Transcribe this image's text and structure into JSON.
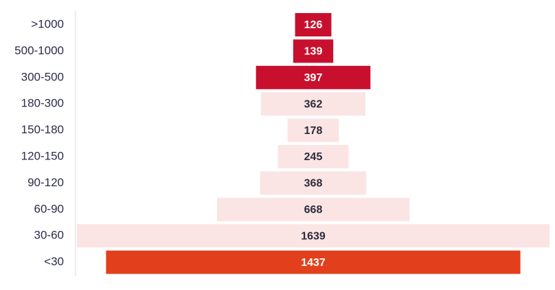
{
  "chart_data": {
    "type": "funnel",
    "categories": [
      ">1000",
      "500-1000",
      "300-500",
      "180-300",
      "150-180",
      "120-150",
      "90-120",
      "60-90",
      "30-60",
      "<30"
    ],
    "values": [
      126,
      139,
      397,
      362,
      178,
      245,
      368,
      668,
      1639,
      1437
    ],
    "colors": [
      "#c8102e",
      "#c8102e",
      "#c8102e",
      "#fbe4e4",
      "#fbe4e4",
      "#fbe4e4",
      "#fbe4e4",
      "#fbe4e4",
      "#fbe4e4",
      "#e2401c"
    ]
  }
}
